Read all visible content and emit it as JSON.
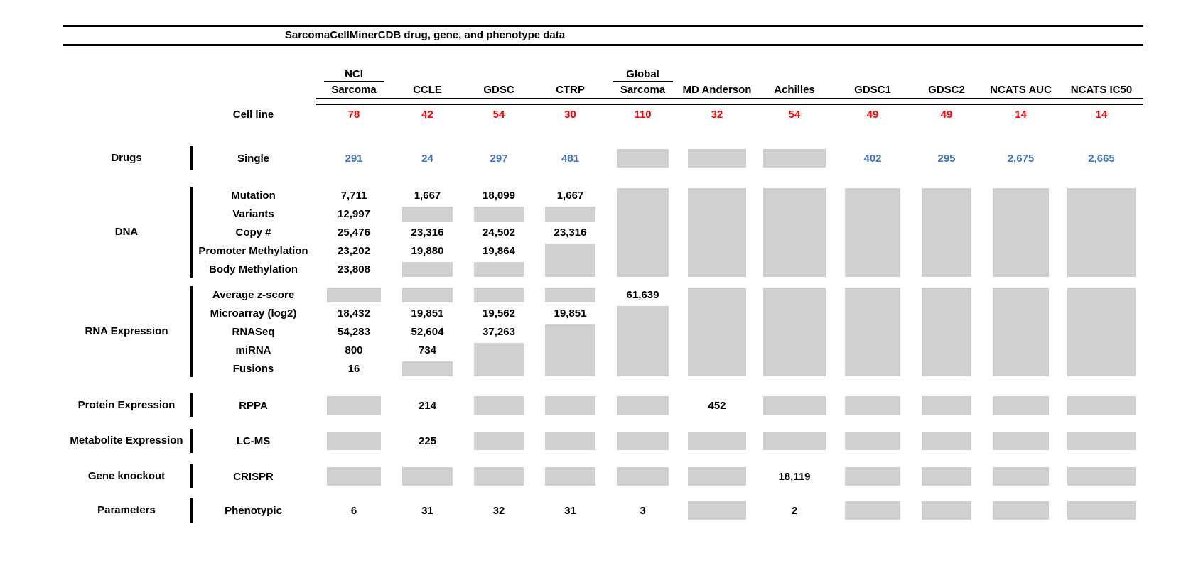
{
  "title": "SarcomaCellMinerCDB drug, gene, and phenotype data",
  "colors": {
    "cell_line_count_red": "#fe0000",
    "drug_value_blue": "#4472c4",
    "no_data_gray": "#d1cfcf",
    "text_black": "#000000"
  },
  "cell_line_row_label": "Cell line",
  "columns": [
    {
      "top": "NCI",
      "label": "Sarcoma",
      "cell_lines": "78"
    },
    {
      "top": "",
      "label": "CCLE",
      "cell_lines": "42"
    },
    {
      "top": "",
      "label": "GDSC",
      "cell_lines": "54"
    },
    {
      "top": "",
      "label": "CTRP",
      "cell_lines": "30"
    },
    {
      "top": "Global",
      "label": "Sarcoma",
      "cell_lines": "110"
    },
    {
      "top": "",
      "label": "MD Anderson",
      "cell_lines": "32"
    },
    {
      "top": "",
      "label": "Achilles",
      "cell_lines": "54"
    },
    {
      "top": "",
      "label": "GDSC1",
      "cell_lines": "49"
    },
    {
      "top": "",
      "label": "GDSC2",
      "cell_lines": "49"
    },
    {
      "top": "",
      "label": "NCATS AUC",
      "cell_lines": "14"
    },
    {
      "top": "",
      "label": "NCATS IC50",
      "cell_lines": "14"
    }
  ],
  "cell_token_legend": {
    "NA": "gray box = no data (one row)",
    "NA:n": "gray box spanning n rows downward",
    "": "blank cell"
  },
  "sections": [
    {
      "category": "Drugs",
      "value_color": "blue",
      "rows": [
        {
          "label": "Single",
          "cells": [
            "291",
            "24",
            "297",
            "481",
            "NA",
            "NA",
            "NA",
            "402",
            "295",
            "2,675",
            "2,665"
          ]
        }
      ]
    },
    {
      "category": "DNA",
      "value_color": "black",
      "rows": [
        {
          "label": "Mutation",
          "cells": [
            "7,711",
            "1,667",
            "18,099",
            "1,667",
            "NA:5",
            "NA:5",
            "NA:5",
            "NA:5",
            "NA:5",
            "NA:5",
            "NA:5"
          ]
        },
        {
          "label": "Variants",
          "cells": [
            "12,997",
            "NA",
            "NA",
            "NA",
            "",
            "",
            "",
            "",
            "",
            "",
            ""
          ]
        },
        {
          "label": "Copy #",
          "cells": [
            "25,476",
            "23,316",
            "24,502",
            "23,316",
            "",
            "",
            "",
            "",
            "",
            "",
            ""
          ]
        },
        {
          "label": "Promoter Methylation",
          "cells": [
            "23,202",
            "19,880",
            "19,864",
            "NA:2",
            "",
            "",
            "",
            "",
            "",
            "",
            ""
          ]
        },
        {
          "label": "Body Methylation",
          "cells": [
            "23,808",
            "NA",
            "NA",
            "",
            "",
            "",
            "",
            "",
            "",
            "",
            ""
          ]
        }
      ]
    },
    {
      "category": "RNA Expression",
      "value_color": "black",
      "rows": [
        {
          "label": "Average z-score",
          "cells": [
            "NA",
            "NA",
            "NA",
            "NA",
            "61,639",
            "NA:5",
            "NA:5",
            "NA:5",
            "NA:5",
            "NA:5",
            "NA:5"
          ]
        },
        {
          "label": "Microarray (log2)",
          "cells": [
            "18,432",
            "19,851",
            "19,562",
            "19,851",
            "NA:4",
            "",
            "",
            "",
            "",
            "",
            ""
          ]
        },
        {
          "label": "RNASeq",
          "cells": [
            "54,283",
            "52,604",
            "37,263",
            "NA:3",
            "",
            "",
            "",
            "",
            "",
            "",
            ""
          ]
        },
        {
          "label": "miRNA",
          "cells": [
            "800",
            "734",
            "NA:2",
            "",
            "",
            "",
            "",
            "",
            "",
            "",
            ""
          ]
        },
        {
          "label": "Fusions",
          "cells": [
            "16",
            "NA",
            "",
            "",
            "",
            "",
            "",
            "",
            "",
            "",
            ""
          ]
        }
      ]
    },
    {
      "category": "Protein Expression",
      "value_color": "black",
      "rows": [
        {
          "label": "RPPA",
          "cells": [
            "NA",
            "214",
            "NA",
            "NA",
            "NA",
            "452",
            "NA",
            "NA",
            "NA",
            "NA",
            "NA"
          ]
        }
      ]
    },
    {
      "category": "Metabolite Expression",
      "value_color": "black",
      "rows": [
        {
          "label": "LC-MS",
          "cells": [
            "NA",
            "225",
            "NA",
            "NA",
            "NA",
            "NA",
            "NA",
            "NA",
            "NA",
            "NA",
            "NA"
          ]
        }
      ]
    },
    {
      "category": "Gene knockout",
      "value_color": "black",
      "rows": [
        {
          "label": "CRISPR",
          "cells": [
            "NA",
            "NA",
            "NA",
            "NA",
            "NA",
            "NA",
            "18,119",
            "NA",
            "NA",
            "NA",
            "NA"
          ]
        }
      ]
    },
    {
      "category": "Parameters",
      "value_color": "black",
      "rows": [
        {
          "label": "Phenotypic",
          "cells": [
            "6",
            "31",
            "32",
            "31",
            "3",
            "NA",
            "2",
            "NA",
            "NA",
            "NA",
            "NA"
          ]
        }
      ]
    }
  ]
}
